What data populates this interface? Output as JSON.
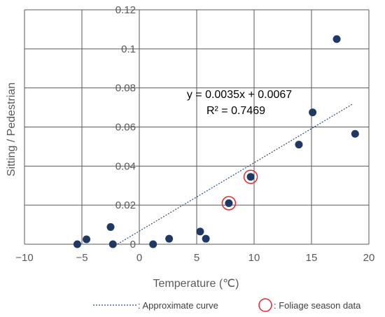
{
  "chart_data": {
    "type": "scatter",
    "xlabel": "Temperature (℃)",
    "ylabel": "Sitting / Pedestrian",
    "xlim": [
      -10,
      20
    ],
    "ylim": [
      0,
      0.12
    ],
    "x_ticks": [
      "−10",
      "−5",
      "0",
      "5",
      "10",
      "15",
      "20"
    ],
    "y_ticks": [
      "0",
      "0.02",
      "0.04",
      "0.06",
      "0.08",
      "0.1",
      "0.12"
    ],
    "grid": true,
    "points": [
      {
        "x": -5.4,
        "y": 0.0
      },
      {
        "x": -4.6,
        "y": 0.0025
      },
      {
        "x": -2.5,
        "y": 0.0088
      },
      {
        "x": -2.3,
        "y": 0.0
      },
      {
        "x": 1.2,
        "y": 0.0
      },
      {
        "x": 2.6,
        "y": 0.0028
      },
      {
        "x": 5.3,
        "y": 0.0065
      },
      {
        "x": 5.8,
        "y": 0.0028
      },
      {
        "x": 7.8,
        "y": 0.021,
        "foliage": true
      },
      {
        "x": 9.7,
        "y": 0.0345,
        "foliage": true
      },
      {
        "x": 13.9,
        "y": 0.051
      },
      {
        "x": 15.1,
        "y": 0.0675
      },
      {
        "x": 17.2,
        "y": 0.105
      },
      {
        "x": 18.8,
        "y": 0.0565
      }
    ],
    "trendline": {
      "slope": 0.0035,
      "intercept": 0.0067,
      "x_range": [
        -1.9,
        18.6
      ],
      "equation": "y = 0.0035x + 0.0067",
      "r_squared": "R² = 0.7469"
    },
    "legend": {
      "position": "bottom",
      "items": [
        {
          "label": ": Approximate curve",
          "marker": "dashed-line"
        },
        {
          "label": ": Foliage season data",
          "marker": "red-circle"
        }
      ]
    },
    "colors": {
      "point": "#1f3864",
      "trend": "#2f4a80",
      "highlight": "#e8262a",
      "grid": "#595959",
      "text": "#595959"
    }
  }
}
